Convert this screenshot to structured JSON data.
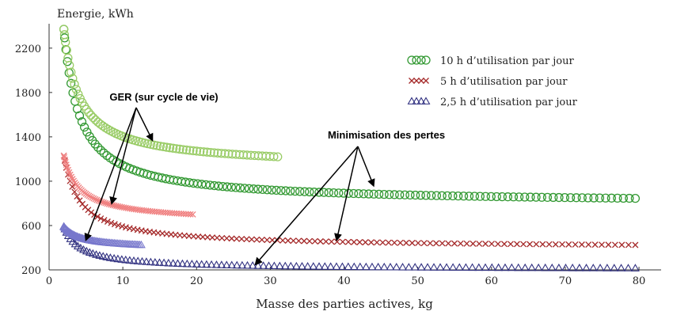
{
  "chart_data": {
    "type": "scatter",
    "ylabel": "Energie, kWh",
    "xlabel": "Masse des parties actives, kg",
    "xlim": [
      0,
      83
    ],
    "ylim": [
      200,
      2420
    ],
    "xticks": [
      0,
      10,
      20,
      30,
      40,
      50,
      60,
      70,
      80
    ],
    "yticks": [
      200,
      600,
      1000,
      1400,
      1800,
      2200
    ],
    "grid": false,
    "legend_position": "top-right",
    "series": [
      {
        "name": "10 h d’utilisation par jour",
        "marker": "circle",
        "colors": {
          "ger": "#99cc66",
          "min": "#339933"
        },
        "ger": {
          "x_start": 2,
          "x_end": 31,
          "count": 75,
          "y_start": 2370,
          "y_end": 1220,
          "curve": 0.95
        },
        "min": {
          "x_start": 2,
          "x_end": 79.5,
          "count": 130,
          "y_start": 2370,
          "y_end": 845,
          "curve": 0.95
        }
      },
      {
        "name": "5 h d’utilisation par jour",
        "marker": "cross",
        "colors": {
          "ger": "#f08080",
          "min": "#a52a2a"
        },
        "ger": {
          "x_start": 2,
          "x_end": 19.5,
          "count": 75,
          "y_start": 1230,
          "y_end": 700,
          "curve": 0.95
        },
        "min": {
          "x_start": 2,
          "x_end": 79.5,
          "count": 115,
          "y_start": 1230,
          "y_end": 425,
          "curve": 0.92
        }
      },
      {
        "name": "2,5 h d’utilisation par jour",
        "marker": "triangle",
        "colors": {
          "ger": "#7777cc",
          "min": "#303080"
        },
        "ger": {
          "x_start": 2,
          "x_end": 12.5,
          "count": 60,
          "y_start": 590,
          "y_end": 425,
          "curve": 0.95
        },
        "min": {
          "x_start": 2,
          "x_end": 79.5,
          "count": 110,
          "y_start": 590,
          "y_end": 215,
          "curve": 0.92
        }
      }
    ],
    "annotations": [
      {
        "text": "GER (sur cycle de vie)",
        "arrows_to": [
          [
            14,
            1370
          ],
          [
            8.5,
            800
          ],
          [
            5,
            470
          ]
        ]
      },
      {
        "text": "Minimisation des pertes",
        "arrows_to": [
          [
            44,
            960
          ],
          [
            39,
            470
          ],
          [
            28,
            250
          ]
        ]
      }
    ]
  }
}
